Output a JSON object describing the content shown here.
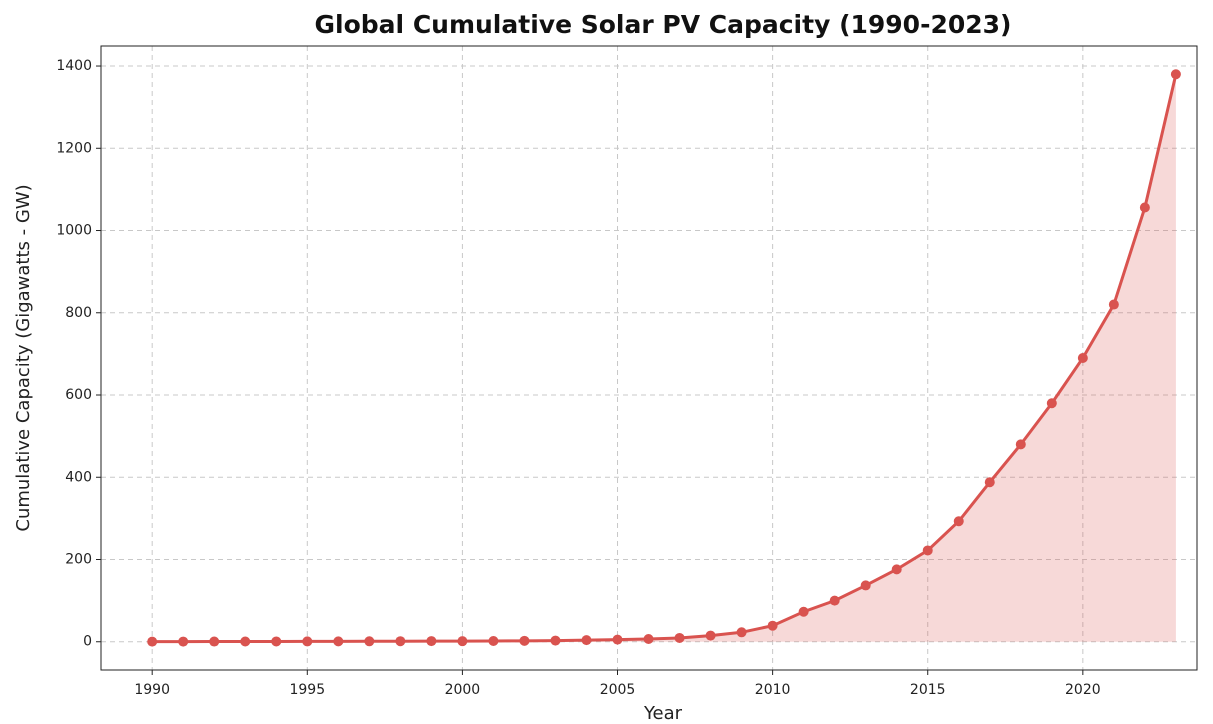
{
  "chart_data": {
    "type": "line",
    "title": "Global Cumulative Solar PV Capacity (1990-2023)",
    "xlabel": "Year",
    "ylabel": "Cumulative Capacity (Gigawatts - GW)",
    "x": [
      1990,
      1991,
      1992,
      1993,
      1994,
      1995,
      1996,
      1997,
      1998,
      1999,
      2000,
      2001,
      2002,
      2003,
      2004,
      2005,
      2006,
      2007,
      2008,
      2009,
      2010,
      2011,
      2012,
      2013,
      2014,
      2015,
      2016,
      2017,
      2018,
      2019,
      2020,
      2021,
      2022,
      2023
    ],
    "series": [
      {
        "name": "Cumulative Capacity",
        "color": "#d9534f",
        "values": [
          0.3,
          0.4,
          0.5,
          0.6,
          0.7,
          0.8,
          0.9,
          1.1,
          1.3,
          1.6,
          1.4,
          1.8,
          2.2,
          2.8,
          3.9,
          5.1,
          6.7,
          9.2,
          15,
          23,
          39,
          73,
          100,
          137,
          176,
          222,
          293,
          388,
          480,
          580,
          690,
          820,
          1056,
          1380
        ]
      }
    ],
    "fill": true,
    "xlim": [
      1988.35,
      2023.68
    ],
    "ylim": [
      -68.7,
      1448.7
    ],
    "xticks": [
      1990,
      1995,
      2000,
      2005,
      2010,
      2015,
      2020
    ],
    "yticks": [
      0,
      200,
      400,
      600,
      800,
      1000,
      1200,
      1400
    ],
    "grid": true
  }
}
